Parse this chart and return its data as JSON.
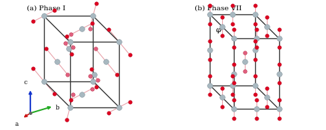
{
  "title_a": "(a) Phase I",
  "title_b": "(b) Phase VII",
  "phi_label": "φ",
  "bg_color": "#ffffff",
  "C_color": "#a8b8c0",
  "O_red": "#dd0020",
  "O_pink": "#e06080",
  "box_color": "#303030",
  "bond_color": "#e8a0a8",
  "axis_c_color": "#1133cc",
  "axis_b_color": "#22aa22",
  "axis_a_color": "#cc1111",
  "figsize": [
    4.74,
    1.9
  ],
  "dpi": 100
}
